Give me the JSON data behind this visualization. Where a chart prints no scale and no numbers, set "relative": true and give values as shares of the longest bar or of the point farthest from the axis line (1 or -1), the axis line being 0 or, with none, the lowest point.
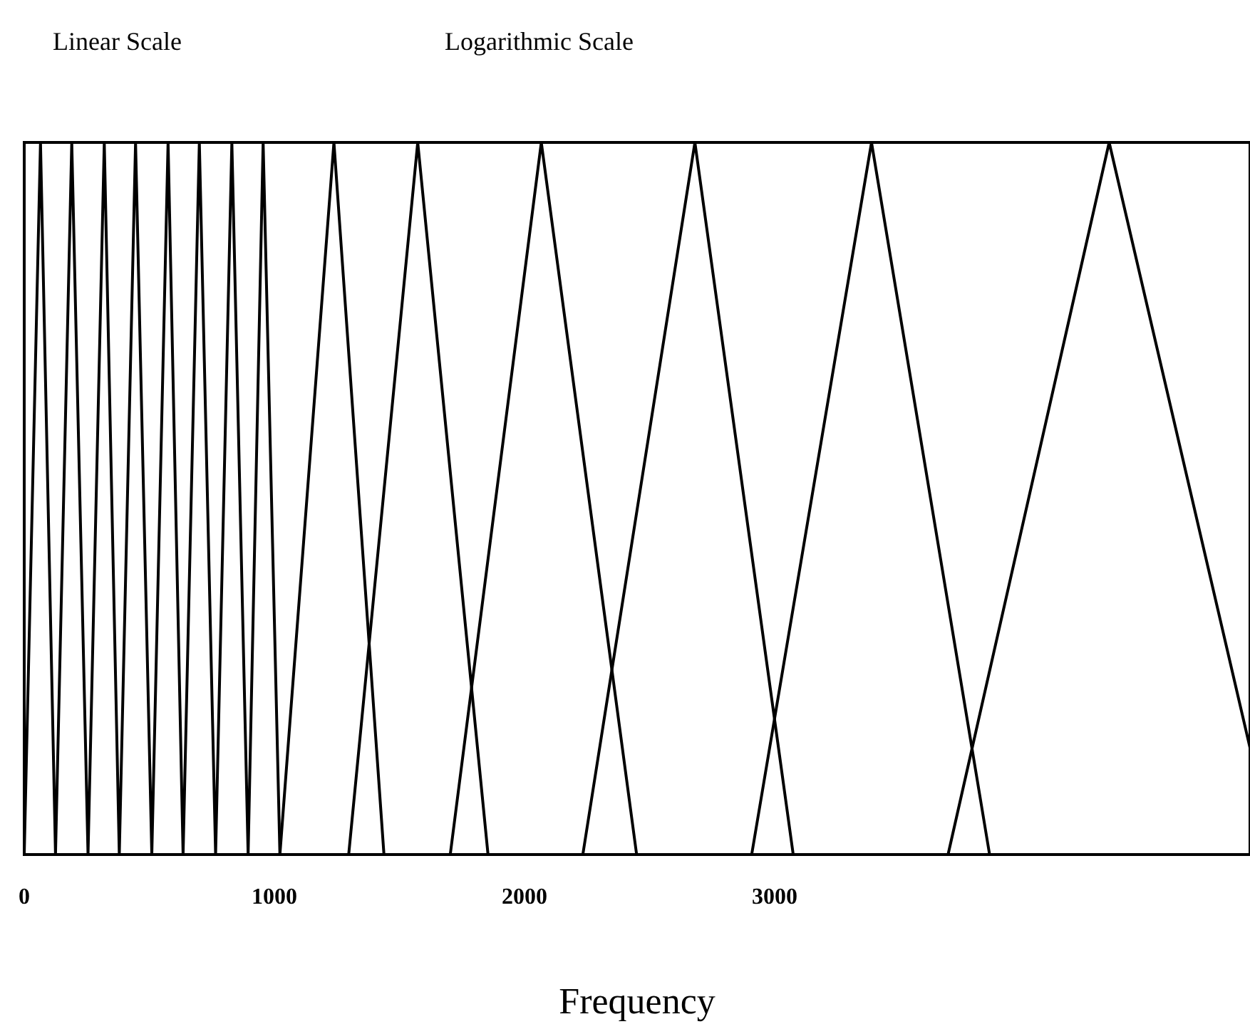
{
  "chart_data": {
    "type": "line",
    "xlabel": "Frequency",
    "annotations": [
      "Linear Scale",
      "Logarithmic Scale"
    ],
    "relative": true,
    "xlim": [
      0,
      4900
    ],
    "xticks": [
      0,
      1000,
      2000,
      3000
    ],
    "grid": false,
    "marker": "none",
    "line_style": "solid",
    "series": [
      {
        "color": "#000000",
        "x": [
          0,
          65,
          125,
          190,
          255,
          320,
          380,
          445,
          510,
          575,
          635,
          700,
          765,
          830,
          895,
          955,
          1022
        ],
        "values": [
          0,
          1,
          0,
          1,
          0,
          1,
          0,
          1,
          0,
          1,
          0,
          1,
          0,
          1,
          0,
          1,
          0
        ]
      },
      {
        "color": "#000000",
        "x": [
          1022,
          1238,
          1438
        ],
        "values": [
          0,
          1,
          0
        ]
      },
      {
        "color": "#000000",
        "x": [
          1297,
          1573,
          1854
        ],
        "values": [
          0,
          1,
          0
        ]
      },
      {
        "color": "#000000",
        "x": [
          1703,
          2067,
          2448
        ],
        "values": [
          0,
          1,
          0
        ]
      },
      {
        "color": "#000000",
        "x": [
          2233,
          2681,
          3074
        ],
        "values": [
          0,
          1,
          0
        ]
      },
      {
        "color": "#000000",
        "x": [
          2908,
          3387,
          3859
        ],
        "values": [
          0,
          1,
          0
        ]
      },
      {
        "color": "#000000",
        "x": [
          3693,
          4337,
          4900
        ],
        "values": [
          0,
          1,
          0.15
        ]
      }
    ]
  }
}
